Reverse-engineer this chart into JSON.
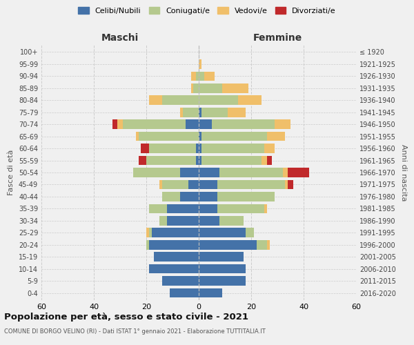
{
  "age_groups": [
    "0-4",
    "5-9",
    "10-14",
    "15-19",
    "20-24",
    "25-29",
    "30-34",
    "35-39",
    "40-44",
    "45-49",
    "50-54",
    "55-59",
    "60-64",
    "65-69",
    "70-74",
    "75-79",
    "80-84",
    "85-89",
    "90-94",
    "95-99",
    "100+"
  ],
  "birth_years": [
    "2016-2020",
    "2011-2015",
    "2006-2010",
    "2001-2005",
    "1996-2000",
    "1991-1995",
    "1986-1990",
    "1981-1985",
    "1976-1980",
    "1971-1975",
    "1966-1970",
    "1961-1965",
    "1956-1960",
    "1951-1955",
    "1946-1950",
    "1941-1945",
    "1936-1940",
    "1931-1935",
    "1926-1930",
    "1921-1925",
    "≤ 1920"
  ],
  "male": {
    "celibi": [
      11,
      14,
      19,
      17,
      19,
      18,
      12,
      12,
      7,
      4,
      7,
      1,
      1,
      0,
      5,
      0,
      0,
      0,
      0,
      0,
      0
    ],
    "coniugati": [
      0,
      0,
      0,
      0,
      1,
      1,
      3,
      7,
      7,
      10,
      18,
      19,
      18,
      23,
      24,
      6,
      14,
      2,
      1,
      0,
      0
    ],
    "vedovi": [
      0,
      0,
      0,
      0,
      0,
      1,
      0,
      0,
      0,
      1,
      0,
      0,
      0,
      1,
      2,
      1,
      5,
      1,
      2,
      0,
      0
    ],
    "divorziati": [
      0,
      0,
      0,
      0,
      0,
      0,
      0,
      0,
      0,
      0,
      0,
      3,
      3,
      0,
      2,
      0,
      0,
      0,
      0,
      0,
      0
    ]
  },
  "female": {
    "nubili": [
      9,
      18,
      18,
      17,
      22,
      18,
      8,
      7,
      7,
      7,
      8,
      1,
      1,
      1,
      5,
      1,
      0,
      0,
      0,
      0,
      0
    ],
    "coniugate": [
      0,
      0,
      0,
      0,
      4,
      3,
      9,
      18,
      22,
      26,
      24,
      23,
      24,
      25,
      24,
      10,
      15,
      9,
      2,
      0,
      0
    ],
    "vedove": [
      0,
      0,
      0,
      0,
      1,
      0,
      0,
      1,
      0,
      1,
      2,
      2,
      4,
      7,
      6,
      7,
      9,
      10,
      4,
      1,
      0
    ],
    "divorziate": [
      0,
      0,
      0,
      0,
      0,
      0,
      0,
      0,
      0,
      2,
      8,
      2,
      0,
      0,
      0,
      0,
      0,
      0,
      0,
      0,
      0
    ]
  },
  "colors": {
    "celibi": "#4472a8",
    "coniugati": "#b5c98e",
    "vedovi": "#f0bf6a",
    "divorziati": "#c0292b"
  },
  "xlim": 60,
  "title": "Popolazione per età, sesso e stato civile - 2021",
  "subtitle": "COMUNE DI BORGO VELINO (RI) - Dati ISTAT 1° gennaio 2021 - Elaborazione TUTTITALIA.IT",
  "xlabel_left": "Maschi",
  "xlabel_right": "Femmine",
  "ylabel_left": "Fasce di età",
  "ylabel_right": "Anni di nascita",
  "legend_labels": [
    "Celibi/Nubili",
    "Coniugati/e",
    "Vedovi/e",
    "Divorziati/e"
  ],
  "background_color": "#f0f0f0",
  "grid_color": "#cccccc"
}
